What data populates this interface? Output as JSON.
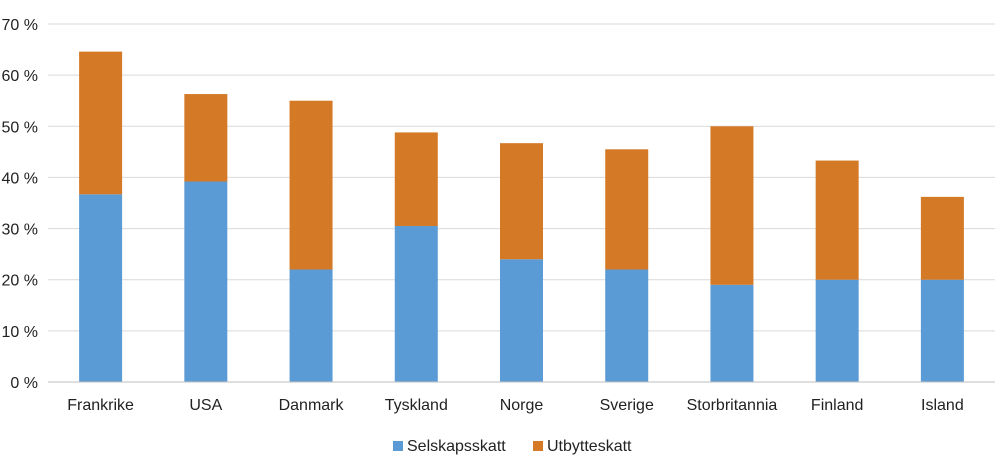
{
  "chart_data": {
    "type": "bar",
    "stacked": true,
    "categories": [
      "Frankrike",
      "USA",
      "Danmark",
      "Tyskland",
      "Norge",
      "Sverige",
      "Storbritannia",
      "Finland",
      "Island"
    ],
    "series": [
      {
        "name": "Selskapsskatt",
        "color": "#5B9BD5",
        "values": [
          36.7,
          39.2,
          22.0,
          30.5,
          24.0,
          22.0,
          19.0,
          20.0,
          20.0
        ]
      },
      {
        "name": "Utbytteskatt",
        "color": "#D47A26",
        "values": [
          27.9,
          17.1,
          33.0,
          18.3,
          22.7,
          23.5,
          31.0,
          23.3,
          16.2
        ]
      }
    ],
    "title": "",
    "xlabel": "",
    "ylabel": "",
    "ylim": [
      0,
      70
    ],
    "yticks": [
      0,
      10,
      20,
      30,
      40,
      50,
      60,
      70
    ],
    "ytick_labels": [
      "0 %",
      "10 %",
      "20 %",
      "30 %",
      "40 %",
      "50 %",
      "60 %",
      "70 %"
    ],
    "grid": true,
    "legend": {
      "position": "bottom",
      "entries": [
        "Selskapsskatt",
        "Utbytteskatt"
      ]
    },
    "colors": {
      "grid": "#D9D9D9",
      "axis": "#BFBFBF",
      "text": "#222222"
    }
  }
}
